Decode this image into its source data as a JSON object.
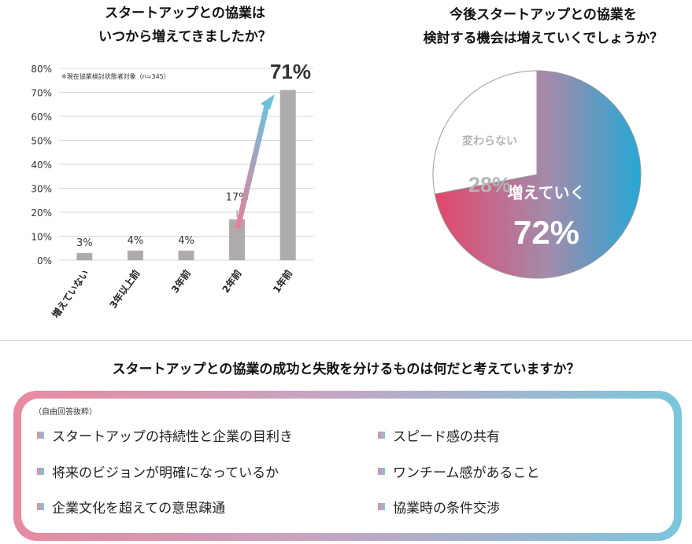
{
  "charts": {
    "bar_title_line1": "スタートアップとの協業は",
    "bar_title_line2": "いつから増えてきましたか？",
    "bar_note": "※現在協業検討状態者対象（n=345）",
    "pie_title_line1": "今後スタートアップとの協業を",
    "pie_title_line2": "検討する機会は増えていくでしょうか？",
    "big_label": "71%"
  },
  "chart_data": [
    {
      "type": "bar",
      "categories": [
        "増えていない",
        "3年以上前",
        "3年前",
        "2年前",
        "1年前"
      ],
      "values": [
        3,
        4,
        4,
        17,
        71
      ],
      "value_labels": [
        "3%",
        "4%",
        "4%",
        "17%",
        ""
      ],
      "ylim": [
        0,
        80
      ],
      "yticks": [
        "0%",
        "10%",
        "20%",
        "30%",
        "40%",
        "50%",
        "60%",
        "70%",
        "80%"
      ],
      "grid": true,
      "bar_color": "#b0abab"
    },
    {
      "type": "pie",
      "labels": [
        "増えていく",
        "変わらない"
      ],
      "values": [
        72,
        28
      ],
      "value_labels": [
        "72%",
        "28%"
      ],
      "colors": [
        "gradient #e4466a→#25a8d4",
        "#ffffff"
      ]
    }
  ],
  "section3": {
    "question": "スタートアップとの協業の成功と失敗を分けるものは何だと考えていますか？",
    "note": "（自由回答抜粋）",
    "items_left": [
      "スタートアップの持続性と企業の目利き",
      "将来のビジョンが明確になっているか",
      "企業文化を超えての意思疎通"
    ],
    "items_right": [
      "スピード感の共有",
      "ワンチーム感があること",
      "協業時の条件交渉"
    ]
  }
}
